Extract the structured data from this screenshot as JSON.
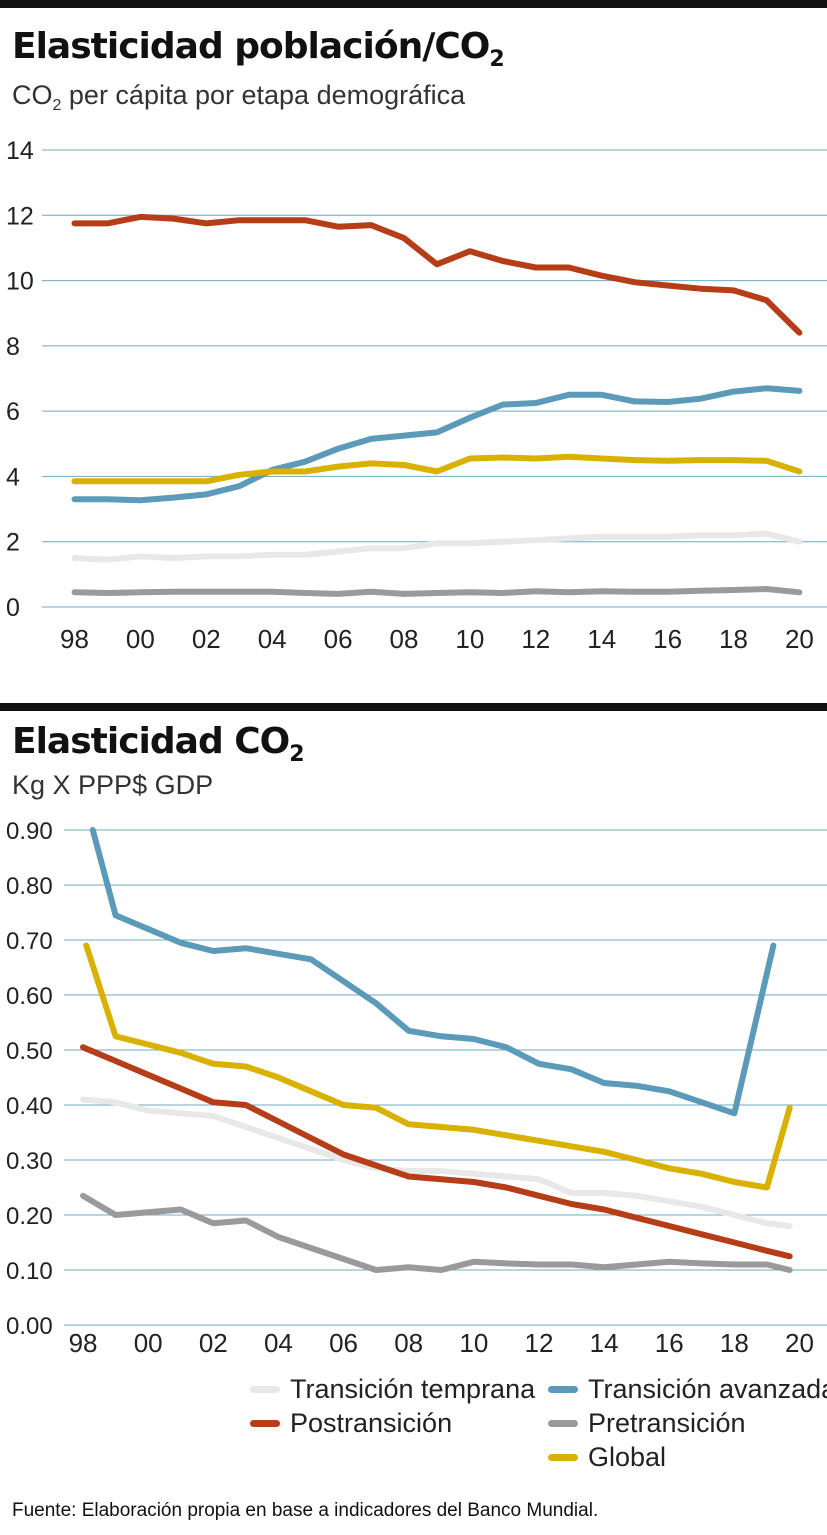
{
  "chart1": {
    "title": "Elasticidad población/CO",
    "title_sub": "2",
    "subtitle_pre": "CO",
    "subtitle_sub": "2",
    "subtitle_post": " per cápita por etapa demográfica"
  },
  "chart2": {
    "title": "Elasticidad  CO",
    "title_sub": "2",
    "subtitle": "Kg X PPP$ GDP"
  },
  "legend": {
    "items": [
      {
        "label": "Transición temprana",
        "color": "#e8e8e8"
      },
      {
        "label": "Transición avanzada",
        "color": "#5b9ab8"
      },
      {
        "label": "Postransición",
        "color": "#b53d17"
      },
      {
        "label": "Pretransición",
        "color": "#9a9a9a"
      },
      {
        "label": "Global",
        "color": "#d9b100"
      }
    ]
  },
  "source": "Fuente: Elaboración propia en base a indicadores del Banco Mundial.",
  "chart_data": [
    {
      "type": "line",
      "title": "Elasticidad población/CO2",
      "subtitle": "CO2 per cápita por etapa demográfica",
      "x_tick_labels": [
        "98",
        "00",
        "02",
        "04",
        "06",
        "08",
        "10",
        "12",
        "14",
        "16",
        "18",
        "20"
      ],
      "x_ticks": [
        1998,
        2000,
        2002,
        2004,
        2006,
        2008,
        2010,
        2012,
        2014,
        2016,
        2018,
        2020
      ],
      "xlim": [
        1997.5,
        2020.2
      ],
      "ylim": [
        0,
        14
      ],
      "y_ticks": [
        0,
        2,
        4,
        6,
        8,
        10,
        12,
        14
      ],
      "y_tick_labels": [
        "0",
        "2",
        "4",
        "6",
        "8",
        "10",
        "12",
        "14"
      ],
      "grid": true,
      "series": [
        {
          "name": "Transición temprana",
          "color": "#e8e8e8",
          "x": [
            1998,
            1999,
            2000,
            2001,
            2002,
            2003,
            2004,
            2005,
            2006,
            2007,
            2008,
            2009,
            2010,
            2011,
            2012,
            2013,
            2014,
            2015,
            2016,
            2017,
            2018,
            2019,
            2020
          ],
          "y": [
            1.5,
            1.45,
            1.55,
            1.5,
            1.55,
            1.55,
            1.6,
            1.6,
            1.7,
            1.8,
            1.8,
            1.95,
            1.95,
            2.0,
            2.05,
            2.1,
            2.15,
            2.15,
            2.15,
            2.2,
            2.2,
            2.25,
            2.0
          ]
        },
        {
          "name": "Transición avanzada",
          "color": "#5b9ab8",
          "x": [
            1998,
            1999,
            2000,
            2001,
            2002,
            2003,
            2004,
            2005,
            2006,
            2007,
            2008,
            2009,
            2010,
            2011,
            2012,
            2013,
            2014,
            2015,
            2016,
            2017,
            2018,
            2019,
            2020
          ],
          "y": [
            3.3,
            3.3,
            3.27,
            3.35,
            3.45,
            3.7,
            4.2,
            4.45,
            4.85,
            5.15,
            5.25,
            5.35,
            5.8,
            6.2,
            6.25,
            6.5,
            6.5,
            6.3,
            6.28,
            6.38,
            6.6,
            6.7,
            6.62
          ]
        },
        {
          "name": "Postransición",
          "color": "#b53d17",
          "x": [
            1998,
            1999,
            2000,
            2001,
            2002,
            2003,
            2004,
            2005,
            2006,
            2007,
            2008,
            2009,
            2010,
            2011,
            2012,
            2013,
            2014,
            2015,
            2016,
            2017,
            2018,
            2019,
            2020
          ],
          "y": [
            11.75,
            11.75,
            11.95,
            11.9,
            11.75,
            11.85,
            11.85,
            11.85,
            11.65,
            11.7,
            11.3,
            10.5,
            10.9,
            10.6,
            10.4,
            10.4,
            10.15,
            9.95,
            9.85,
            9.75,
            9.7,
            9.4,
            8.4
          ]
        },
        {
          "name": "Pretransición",
          "color": "#9a9a9a",
          "x": [
            1998,
            1999,
            2000,
            2001,
            2002,
            2003,
            2004,
            2005,
            2006,
            2007,
            2008,
            2009,
            2010,
            2011,
            2012,
            2013,
            2014,
            2015,
            2016,
            2017,
            2018,
            2019,
            2020
          ],
          "y": [
            0.45,
            0.43,
            0.45,
            0.47,
            0.47,
            0.47,
            0.47,
            0.43,
            0.4,
            0.47,
            0.4,
            0.43,
            0.45,
            0.43,
            0.48,
            0.45,
            0.48,
            0.47,
            0.47,
            0.5,
            0.52,
            0.55,
            0.45
          ]
        },
        {
          "name": "Global",
          "color": "#d9b100",
          "x": [
            1998,
            1999,
            2000,
            2001,
            2002,
            2003,
            2004,
            2005,
            2006,
            2007,
            2008,
            2009,
            2010,
            2011,
            2012,
            2013,
            2014,
            2015,
            2016,
            2017,
            2018,
            2019,
            2020
          ],
          "y": [
            3.85,
            3.85,
            3.85,
            3.85,
            3.85,
            4.05,
            4.15,
            4.15,
            4.3,
            4.4,
            4.35,
            4.15,
            4.55,
            4.58,
            4.55,
            4.6,
            4.55,
            4.5,
            4.48,
            4.5,
            4.5,
            4.48,
            4.15
          ]
        }
      ]
    },
    {
      "type": "line",
      "title": "Elasticidad CO2",
      "subtitle": "Kg X PPP$ GDP",
      "x_tick_labels": [
        "98",
        "00",
        "02",
        "04",
        "06",
        "08",
        "10",
        "12",
        "14",
        "16",
        "18",
        "20"
      ],
      "x_ticks": [
        1998,
        2000,
        2002,
        2004,
        2006,
        2008,
        2010,
        2012,
        2014,
        2016,
        2018,
        2020
      ],
      "xlim": [
        1997.6,
        2020.2
      ],
      "ylim": [
        0,
        0.9
      ],
      "y_ticks": [
        0,
        0.1,
        0.2,
        0.3,
        0.4,
        0.5,
        0.6,
        0.7,
        0.8,
        0.9
      ],
      "y_tick_labels": [
        "0.00",
        "0.10",
        "0.20",
        "0.30",
        "0.40",
        "0.50",
        "0.60",
        "0.70",
        "0.80",
        "0.90"
      ],
      "grid": true,
      "series": [
        {
          "name": "Transición temprana",
          "color": "#e8e8e8",
          "x": [
            1998,
            1999,
            2000,
            2001,
            2002,
            2003,
            2004,
            2005,
            2006,
            2007,
            2008,
            2009,
            2010,
            2011,
            2012,
            2013,
            2014,
            2015,
            2016,
            2017,
            2018,
            2019,
            2019.7
          ],
          "y": [
            0.41,
            0.405,
            0.39,
            0.385,
            0.38,
            0.36,
            0.34,
            0.32,
            0.3,
            0.285,
            0.28,
            0.28,
            0.275,
            0.27,
            0.265,
            0.24,
            0.24,
            0.235,
            0.225,
            0.215,
            0.2,
            0.185,
            0.18
          ]
        },
        {
          "name": "Transición avanzada",
          "color": "#5b9ab8",
          "x": [
            1998.3,
            1999,
            2000,
            2001,
            2002,
            2003,
            2004,
            2005,
            2006,
            2007,
            2008,
            2009,
            2010,
            2011,
            2012,
            2013,
            2014,
            2015,
            2016,
            2017,
            2018,
            2019.2
          ],
          "y": [
            0.9,
            0.745,
            0.72,
            0.695,
            0.68,
            0.685,
            0.675,
            0.665,
            0.625,
            0.585,
            0.535,
            0.525,
            0.52,
            0.505,
            0.475,
            0.465,
            0.44,
            0.435,
            0.425,
            0.405,
            0.385,
            0.69
          ]
        },
        {
          "name": "Postransición",
          "color": "#b53d17",
          "x": [
            1998,
            1999,
            2000,
            2001,
            2002,
            2003,
            2004,
            2005,
            2006,
            2007,
            2008,
            2009,
            2010,
            2011,
            2012,
            2013,
            2014,
            2015,
            2016,
            2017,
            2018,
            2019,
            2019.7
          ],
          "y": [
            0.505,
            0.48,
            0.455,
            0.43,
            0.405,
            0.4,
            0.37,
            0.34,
            0.31,
            0.29,
            0.27,
            0.265,
            0.26,
            0.25,
            0.235,
            0.22,
            0.21,
            0.195,
            0.18,
            0.165,
            0.15,
            0.135,
            0.125
          ]
        },
        {
          "name": "Pretransición",
          "color": "#9a9a9a",
          "x": [
            1998,
            1999,
            2000,
            2001,
            2002,
            2003,
            2004,
            2005,
            2006,
            2007,
            2008,
            2009,
            2010,
            2011,
            2012,
            2013,
            2014,
            2015,
            2016,
            2017,
            2018,
            2019,
            2019.7
          ],
          "y": [
            0.235,
            0.2,
            0.205,
            0.21,
            0.185,
            0.19,
            0.16,
            0.14,
            0.12,
            0.1,
            0.105,
            0.1,
            0.115,
            0.112,
            0.11,
            0.11,
            0.105,
            0.11,
            0.115,
            0.112,
            0.11,
            0.11,
            0.1
          ]
        },
        {
          "name": "Global",
          "color": "#d9b100",
          "x": [
            1998.1,
            1999,
            2000,
            2001,
            2002,
            2003,
            2004,
            2005,
            2006,
            2007,
            2008,
            2009,
            2010,
            2011,
            2012,
            2013,
            2014,
            2015,
            2016,
            2017,
            2018,
            2019,
            2019.7
          ],
          "y": [
            0.69,
            0.525,
            0.51,
            0.495,
            0.475,
            0.47,
            0.45,
            0.425,
            0.4,
            0.395,
            0.365,
            0.36,
            0.355,
            0.345,
            0.335,
            0.325,
            0.315,
            0.3,
            0.285,
            0.275,
            0.26,
            0.25,
            0.395
          ]
        }
      ]
    }
  ]
}
